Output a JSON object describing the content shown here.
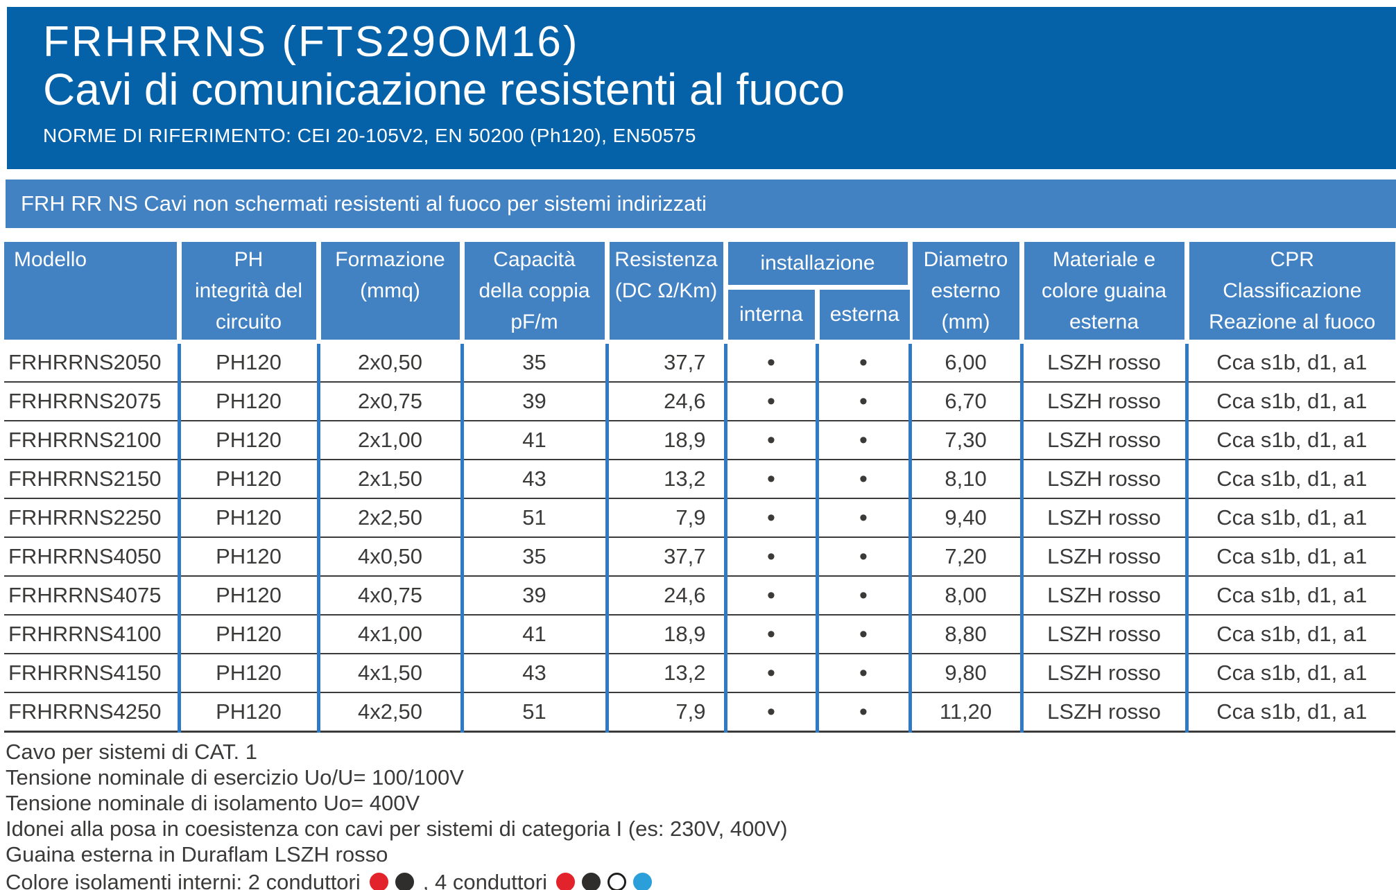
{
  "colors": {
    "banner_blue": "#0662a8",
    "band_blue": "#4281c2",
    "grid_blue": "#3079c4",
    "line_dark": "#3b3a39",
    "text_dark": "#3b3a39",
    "dot_red": "#e3232b",
    "dot_black": "#2f2e2d",
    "dot_white": "#ffffff",
    "dot_blue": "#2b9fd9"
  },
  "banner": {
    "title1": "FRHRRNS (FTS29OM16)",
    "title2": "Cavi di comunicazione resistenti al fuoco",
    "norms": "NORME DI RIFERIMENTO: CEI 20-105V2, EN 50200 (Ph120), EN50575"
  },
  "band": {
    "text": "FRH RR NS Cavi non schermati resistenti al fuoco per sistemi indirizzati"
  },
  "table": {
    "head": {
      "modello": "Modello",
      "ph": [
        "PH",
        "integrità del",
        "circuito"
      ],
      "formazione": [
        "Formazione",
        "(mmq)"
      ],
      "capacita": [
        "Capacità",
        "della coppia",
        "pF/m"
      ],
      "resistenza": [
        "Resistenza",
        "(DC Ω/Km)"
      ],
      "installazione": "installazione",
      "interna": "interna",
      "esterna": "esterna",
      "diametro": [
        "Diametro",
        "esterno",
        "(mm)"
      ],
      "materiale": [
        "Materiale e",
        "colore guaina",
        "esterna"
      ],
      "cpr": [
        "CPR",
        "Classificazione",
        "Reazione al fuoco"
      ]
    },
    "rows": [
      {
        "modello": "FRHRRNS2050",
        "ph": "PH120",
        "formazione": "2x0,50",
        "capacita": "35",
        "resistenza": "37,7",
        "interna": "•",
        "esterna": "•",
        "diametro": "6,00",
        "materiale": "LSZH rosso",
        "cpr": "Cca s1b, d1, a1"
      },
      {
        "modello": "FRHRRNS2075",
        "ph": "PH120",
        "formazione": "2x0,75",
        "capacita": "39",
        "resistenza": "24,6",
        "interna": "•",
        "esterna": "•",
        "diametro": "6,70",
        "materiale": "LSZH rosso",
        "cpr": "Cca s1b, d1, a1"
      },
      {
        "modello": "FRHRRNS2100",
        "ph": "PH120",
        "formazione": "2x1,00",
        "capacita": "41",
        "resistenza": "18,9",
        "interna": "•",
        "esterna": "•",
        "diametro": "7,30",
        "materiale": "LSZH rosso",
        "cpr": "Cca s1b, d1, a1"
      },
      {
        "modello": "FRHRRNS2150",
        "ph": "PH120",
        "formazione": "2x1,50",
        "capacita": "43",
        "resistenza": "13,2",
        "interna": "•",
        "esterna": "•",
        "diametro": "8,10",
        "materiale": "LSZH rosso",
        "cpr": "Cca s1b, d1, a1"
      },
      {
        "modello": "FRHRRNS2250",
        "ph": "PH120",
        "formazione": "2x2,50",
        "capacita": "51",
        "resistenza": "7,9",
        "interna": "•",
        "esterna": "•",
        "diametro": "9,40",
        "materiale": "LSZH rosso",
        "cpr": "Cca s1b, d1, a1"
      },
      {
        "modello": "FRHRRNS4050",
        "ph": "PH120",
        "formazione": "4x0,50",
        "capacita": "35",
        "resistenza": "37,7",
        "interna": "•",
        "esterna": "•",
        "diametro": "7,20",
        "materiale": "LSZH rosso",
        "cpr": "Cca s1b, d1, a1"
      },
      {
        "modello": "FRHRRNS4075",
        "ph": "PH120",
        "formazione": "4x0,75",
        "capacita": "39",
        "resistenza": "24,6",
        "interna": "•",
        "esterna": "•",
        "diametro": "8,00",
        "materiale": "LSZH rosso",
        "cpr": "Cca s1b, d1, a1"
      },
      {
        "modello": "FRHRRNS4100",
        "ph": "PH120",
        "formazione": "4x1,00",
        "capacita": "41",
        "resistenza": "18,9",
        "interna": "•",
        "esterna": "•",
        "diametro": "8,80",
        "materiale": "LSZH rosso",
        "cpr": "Cca s1b, d1, a1"
      },
      {
        "modello": "FRHRRNS4150",
        "ph": "PH120",
        "formazione": "4x1,50",
        "capacita": "43",
        "resistenza": "13,2",
        "interna": "•",
        "esterna": "•",
        "diametro": "9,80",
        "materiale": "LSZH rosso",
        "cpr": "Cca s1b, d1, a1"
      },
      {
        "modello": "FRHRRNS4250",
        "ph": "PH120",
        "formazione": "4x2,50",
        "capacita": "51",
        "resistenza": "7,9",
        "interna": "•",
        "esterna": "•",
        "diametro": "11,20",
        "materiale": "LSZH rosso",
        "cpr": "Cca s1b, d1, a1"
      }
    ]
  },
  "footer": {
    "lines": [
      "Cavo per sistemi di CAT. 1",
      "Tensione nominale di esercizio Uo/U= 100/100V",
      "Tensione nominale di isolamento Uo= 400V",
      "Idonei alla posa in coesistenza con cavi per sistemi di categoria I (es: 230V, 400V)",
      "Guaina esterna in Duraflam LSZH rosso"
    ],
    "colors_line": {
      "prefix": "Colore isolamenti interni: 2 conduttori",
      "separator": ", 4 conduttori",
      "dots_2": [
        {
          "name": "red",
          "fill": "#e3232b",
          "border": "#e3232b"
        },
        {
          "name": "black",
          "fill": "#2f2e2d",
          "border": "#2f2e2d"
        }
      ],
      "dots_4": [
        {
          "name": "red",
          "fill": "#e3232b",
          "border": "#e3232b"
        },
        {
          "name": "black",
          "fill": "#2f2e2d",
          "border": "#2f2e2d"
        },
        {
          "name": "white",
          "fill": "#ffffff",
          "border": "#1f1e1d"
        },
        {
          "name": "blue",
          "fill": "#2b9fd9",
          "border": "#2b9fd9"
        }
      ]
    }
  }
}
